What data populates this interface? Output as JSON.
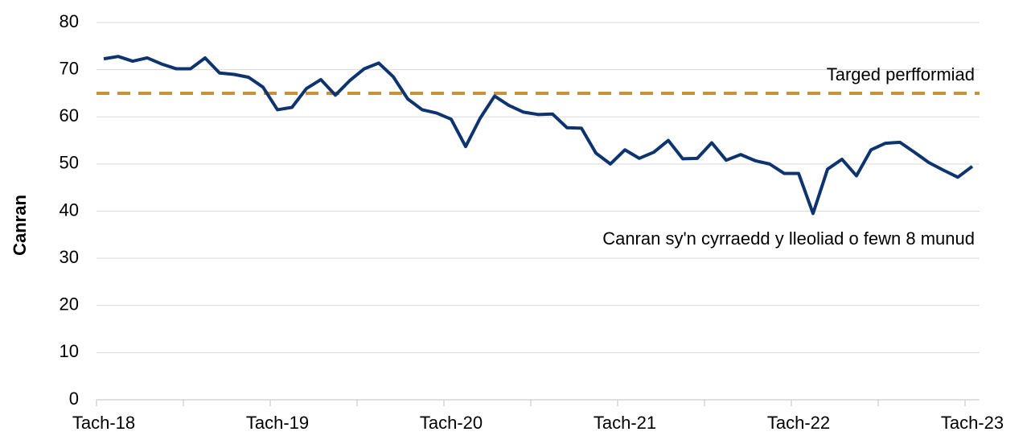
{
  "chart_data": {
    "type": "line",
    "y_label": "Canran",
    "categories": [
      "Tach-18",
      null,
      null,
      null,
      null,
      null,
      null,
      null,
      null,
      null,
      null,
      null,
      "Tach-19",
      null,
      null,
      null,
      null,
      null,
      null,
      null,
      null,
      null,
      null,
      null,
      "Tach-20",
      null,
      null,
      null,
      null,
      null,
      null,
      null,
      null,
      null,
      null,
      null,
      "Tach-21",
      null,
      null,
      null,
      null,
      null,
      null,
      null,
      null,
      null,
      null,
      null,
      "Tach-22",
      null,
      null,
      null,
      null,
      null,
      null,
      null,
      null,
      null,
      null,
      null,
      "Tach-23"
    ],
    "series": [
      {
        "name": "Canran sy'n cyrraedd y lleoliad o fewn 8 munud",
        "color": "#0e3470",
        "values": [
          72.3,
          72.8,
          71.8,
          72.5,
          71.2,
          70.2,
          70.2,
          72.5,
          69.3,
          69.0,
          68.4,
          66.3,
          61.5,
          62.0,
          66.0,
          67.9,
          64.6,
          67.7,
          70.2,
          71.4,
          68.5,
          63.8,
          61.5,
          60.8,
          59.5,
          53.7,
          59.7,
          64.4,
          62.4,
          61.0,
          60.5,
          60.6,
          57.7,
          57.6,
          52.3,
          50.0,
          53.0,
          51.2,
          52.5,
          55.0,
          51.1,
          51.2,
          54.5,
          50.8,
          52.0,
          50.7,
          50.0,
          48.0,
          48.0,
          39.5,
          48.9,
          51.0,
          47.5,
          53.0,
          54.4,
          54.6,
          52.5,
          50.3,
          48.7,
          47.2,
          49.5
        ]
      }
    ],
    "target": {
      "name": "Targed perfformiad",
      "value": 65,
      "color": "#c8923a"
    },
    "ylim": [
      0,
      80
    ],
    "yticks": [
      0,
      10,
      20,
      30,
      40,
      50,
      60,
      70,
      80
    ],
    "grid": true
  }
}
